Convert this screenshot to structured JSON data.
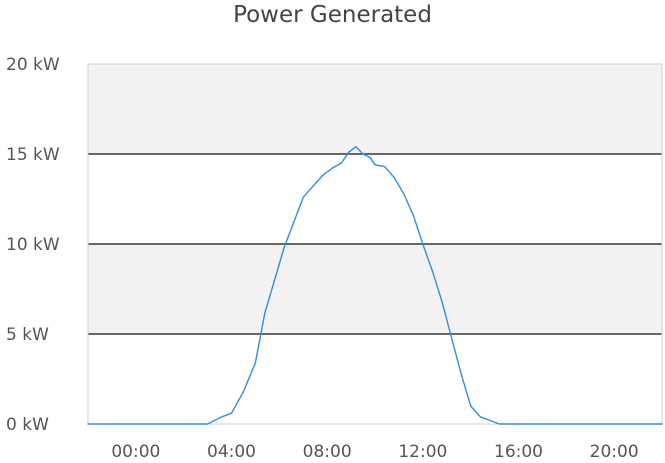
{
  "chart_data": {
    "type": "line",
    "title": "Power Generated",
    "xlabel": "",
    "ylabel": "",
    "y_unit": "kW",
    "ylim": [
      0,
      20
    ],
    "y_ticks": [
      0,
      5,
      10,
      15,
      20
    ],
    "y_tick_labels": [
      "0 kW",
      "5 kW",
      "10 kW",
      "15 kW",
      "20 kW"
    ],
    "x_range_hours": [
      0,
      24
    ],
    "x_ticks": [
      2,
      6,
      10,
      14,
      18,
      22
    ],
    "x_tick_labels": [
      "00:00",
      "04:00",
      "08:00",
      "12:00",
      "16:00",
      "20:00"
    ],
    "grid": true,
    "alternating_bands": true,
    "band_color": "#f2f2f2",
    "gridline_color": "#111111",
    "series_color": "#2f8fdd",
    "series": [
      {
        "x": [
          0,
          5.0,
          5.6,
          6.0,
          6.5,
          7.0,
          7.4,
          7.8,
          8.2,
          8.6,
          9.0,
          9.4,
          9.8,
          10.2,
          10.6,
          10.9,
          11.2,
          11.5,
          11.8,
          12.0,
          12.4,
          12.8,
          13.2,
          13.6,
          14.0,
          14.4,
          14.8,
          15.2,
          15.6,
          16.0,
          16.4,
          16.8,
          17.2,
          17.6,
          18.0,
          24
        ],
        "y": [
          0,
          0,
          0.4,
          0.6,
          1.8,
          3.4,
          6.2,
          8.0,
          9.8,
          11.2,
          12.6,
          13.2,
          13.8,
          14.2,
          14.5,
          15.1,
          15.4,
          15.0,
          14.8,
          14.4,
          14.3,
          13.7,
          12.8,
          11.6,
          10.0,
          8.5,
          6.8,
          4.8,
          2.8,
          1.0,
          0.4,
          0.2,
          0,
          0,
          0,
          0
        ]
      }
    ]
  }
}
